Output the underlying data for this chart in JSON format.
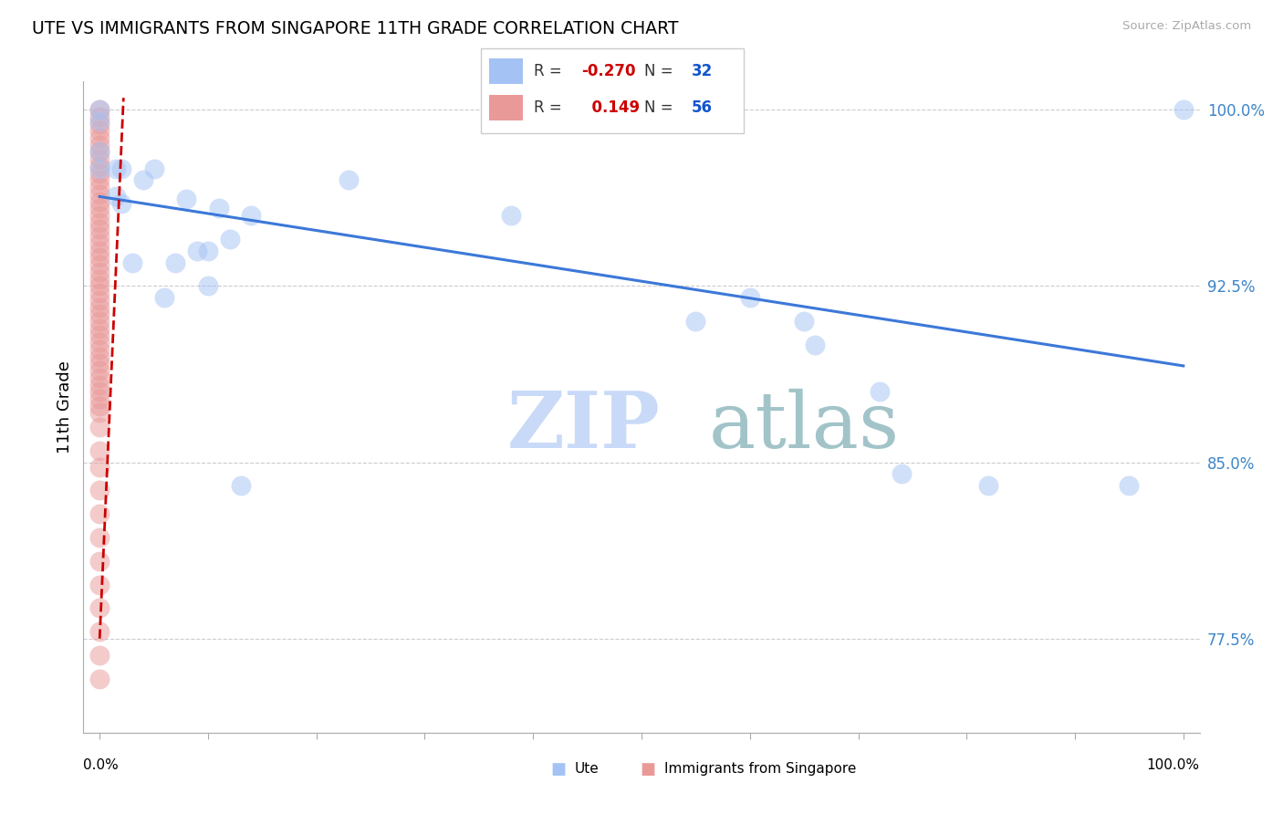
{
  "title": "UTE VS IMMIGRANTS FROM SINGAPORE 11TH GRADE CORRELATION CHART",
  "source": "Source: ZipAtlas.com",
  "ylabel": "11th Grade",
  "ylim": [
    0.735,
    1.012
  ],
  "xlim": [
    -0.015,
    1.015
  ],
  "yticks": [
    0.775,
    0.85,
    0.925,
    1.0
  ],
  "ytick_labels": [
    "77.5%",
    "85.0%",
    "92.5%",
    "100.0%"
  ],
  "xticks": [
    0.0,
    0.1,
    0.2,
    0.3,
    0.4,
    0.5,
    0.6,
    0.7,
    0.8,
    0.9,
    1.0
  ],
  "blue_R": -0.27,
  "blue_N": 32,
  "pink_R": 0.149,
  "pink_N": 56,
  "blue_color": "#a4c2f4",
  "pink_color": "#ea9999",
  "blue_line_color": "#3c78d8",
  "pink_line_color": "#cc0000",
  "blue_line_x0": 0.0,
  "blue_line_x1": 1.0,
  "blue_line_y0": 0.963,
  "blue_line_y1": 0.891,
  "pink_line_x0": 0.0,
  "pink_line_x1": 0.022,
  "pink_line_y0": 0.775,
  "pink_line_y1": 1.005,
  "blue_scatter_x": [
    0.0,
    0.0,
    0.0,
    0.0,
    0.015,
    0.015,
    0.02,
    0.02,
    0.03,
    0.04,
    0.05,
    0.06,
    0.07,
    0.08,
    0.09,
    0.1,
    0.1,
    0.11,
    0.12,
    0.13,
    0.14,
    0.23,
    0.38,
    0.55,
    0.6,
    0.65,
    0.66,
    0.72,
    0.74,
    0.82,
    0.95,
    1.0
  ],
  "blue_scatter_y": [
    0.975,
    0.982,
    0.995,
    1.0,
    0.963,
    0.975,
    0.96,
    0.975,
    0.935,
    0.97,
    0.975,
    0.92,
    0.935,
    0.962,
    0.94,
    0.925,
    0.94,
    0.958,
    0.945,
    0.84,
    0.955,
    0.97,
    0.955,
    0.91,
    0.92,
    0.91,
    0.9,
    0.88,
    0.845,
    0.84,
    0.84,
    1.0
  ],
  "pink_scatter_x": [
    0.0,
    0.0,
    0.0,
    0.0,
    0.0,
    0.0,
    0.0,
    0.0,
    0.0,
    0.0,
    0.0,
    0.0,
    0.0,
    0.0,
    0.0,
    0.0,
    0.0,
    0.0,
    0.0,
    0.0,
    0.0,
    0.0,
    0.0,
    0.0,
    0.0,
    0.0,
    0.0,
    0.0,
    0.0,
    0.0,
    0.0,
    0.0,
    0.0,
    0.0,
    0.0,
    0.0,
    0.0,
    0.0,
    0.0,
    0.0,
    0.0,
    0.0,
    0.0,
    0.0,
    0.0,
    0.0,
    0.0,
    0.0,
    0.0,
    0.0,
    0.0,
    0.0,
    0.0,
    0.0,
    0.0,
    0.0
  ],
  "pink_scatter_y": [
    1.0,
    0.997,
    0.994,
    0.991,
    0.988,
    0.985,
    0.982,
    0.979,
    0.976,
    0.973,
    0.97,
    0.967,
    0.964,
    0.961,
    0.958,
    0.955,
    0.952,
    0.949,
    0.946,
    0.943,
    0.94,
    0.937,
    0.934,
    0.931,
    0.928,
    0.925,
    0.922,
    0.919,
    0.916,
    0.913,
    0.91,
    0.907,
    0.904,
    0.901,
    0.898,
    0.895,
    0.892,
    0.889,
    0.886,
    0.883,
    0.88,
    0.877,
    0.874,
    0.871,
    0.865,
    0.855,
    0.848,
    0.838,
    0.828,
    0.818,
    0.808,
    0.798,
    0.788,
    0.778,
    0.768,
    0.758
  ],
  "watermark_zip": "ZIP",
  "watermark_atlas": "atlas",
  "legend_R_color": "#cc0000",
  "legend_N_color": "#1155cc",
  "legend_label_color": "#333355",
  "background_color": "#ffffff",
  "grid_color": "#cccccc",
  "ytick_color": "#3d85c8"
}
